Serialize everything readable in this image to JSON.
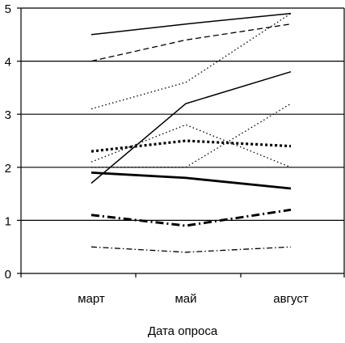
{
  "chart_data": {
    "type": "line",
    "xlabel": "Дата опроса",
    "ylabel": "",
    "categories": [
      "март",
      "май",
      "август"
    ],
    "ylim": [
      0,
      5
    ],
    "yticks": [
      "0",
      "1",
      "2",
      "3",
      "4",
      "5"
    ],
    "grid": "horizontal",
    "series": [
      {
        "values": [
          4.5,
          4.7,
          4.9
        ],
        "style": "solid"
      },
      {
        "values": [
          4.0,
          4.4,
          4.7
        ],
        "style": "dashed"
      },
      {
        "values": [
          3.1,
          3.6,
          4.9
        ],
        "style": "dotted"
      },
      {
        "values": [
          1.7,
          3.2,
          3.8
        ],
        "style": "solid"
      },
      {
        "values": [
          2.1,
          2.8,
          2.0
        ],
        "style": "dotted"
      },
      {
        "values": [
          2.0,
          2.0,
          3.2
        ],
        "style": "dotted"
      },
      {
        "values": [
          2.3,
          2.5,
          2.4
        ],
        "style": "bold-dotted"
      },
      {
        "values": [
          1.9,
          1.8,
          1.6
        ],
        "style": "bold-solid"
      },
      {
        "values": [
          1.1,
          0.9,
          1.2
        ],
        "style": "bold-dash-dot"
      },
      {
        "values": [
          0.5,
          0.4,
          0.5
        ],
        "style": "dash-dot"
      }
    ]
  }
}
